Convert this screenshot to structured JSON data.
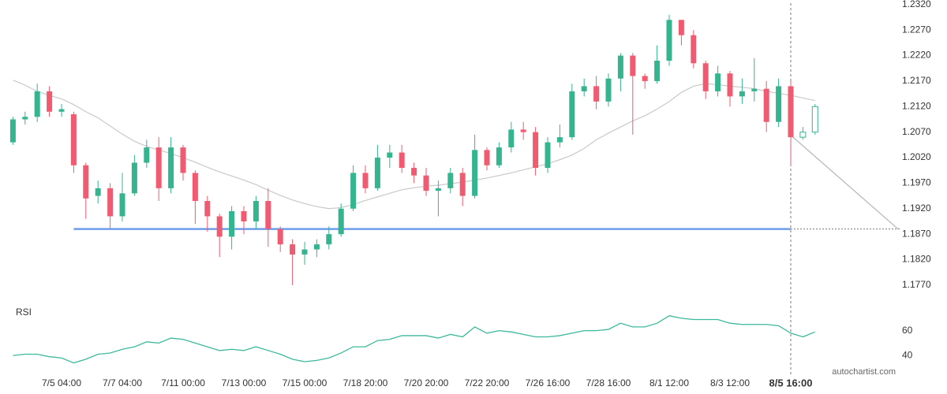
{
  "chart_data": [
    {
      "type": "candlestick",
      "categories": [
        null,
        null,
        null,
        null,
        "7/5 04:00",
        null,
        null,
        null,
        null,
        "7/7 04:00",
        null,
        null,
        null,
        null,
        "7/11 00:00",
        null,
        null,
        null,
        null,
        "7/13 00:00",
        null,
        null,
        null,
        null,
        "7/15 00:00",
        null,
        null,
        null,
        null,
        "7/18 20:00",
        null,
        null,
        null,
        null,
        "7/20 20:00",
        null,
        null,
        null,
        null,
        "7/22 20:00",
        null,
        null,
        null,
        null,
        "7/26 16:00",
        null,
        null,
        null,
        null,
        "7/28 16:00",
        null,
        null,
        null,
        null,
        "8/1 12:00",
        null,
        null,
        null,
        null,
        "8/3 12:00",
        null,
        null,
        null,
        null,
        "8/5 16:00",
        null,
        null
      ],
      "open": [
        1.205,
        1.2095,
        1.21,
        1.215,
        1.211,
        1.2105,
        1.2005,
        1.1945,
        1.196,
        1.1905,
        1.195,
        1.201,
        1.204,
        1.196,
        1.204,
        1.199,
        1.1935,
        1.1905,
        1.1865,
        1.1915,
        1.1895,
        1.1935,
        1.188,
        1.185,
        1.183,
        1.184,
        1.185,
        1.187,
        1.192,
        1.199,
        1.196,
        1.202,
        1.203,
        1.2,
        1.1985,
        1.1955,
        1.196,
        1.199,
        1.1945,
        1.2035,
        1.2005,
        1.204,
        1.2075,
        1.207,
        1.2,
        1.205,
        1.206,
        1.215,
        1.216,
        1.213,
        1.2175,
        1.222,
        1.218,
        1.217,
        1.221,
        1.229,
        1.226,
        1.2205,
        1.215,
        1.2185,
        1.214,
        1.215,
        1.2155,
        1.209,
        1.216,
        1.206,
        1.207
      ],
      "high": [
        1.21,
        1.211,
        1.2165,
        1.216,
        1.2125,
        1.211,
        1.201,
        1.1975,
        1.197,
        1.199,
        1.2025,
        1.2055,
        1.206,
        1.206,
        1.2045,
        1.1995,
        1.1945,
        1.191,
        1.1925,
        1.1925,
        1.1945,
        1.196,
        1.1885,
        1.186,
        1.1855,
        1.186,
        1.1885,
        1.193,
        1.2005,
        1.2005,
        1.2045,
        1.2045,
        1.2045,
        1.201,
        1.2,
        1.1975,
        1.2,
        1.2,
        1.2065,
        1.204,
        1.205,
        1.209,
        1.209,
        1.208,
        1.206,
        1.2085,
        1.2165,
        1.2175,
        1.218,
        1.2185,
        1.2225,
        1.2225,
        1.2185,
        1.224,
        1.23,
        1.229,
        1.227,
        1.221,
        1.22,
        1.219,
        1.2175,
        1.2215,
        1.217,
        1.2175,
        1.217,
        1.208,
        1.2125
      ],
      "low": [
        1.2045,
        1.2085,
        1.209,
        1.21,
        1.21,
        1.199,
        1.19,
        1.193,
        1.188,
        1.1895,
        1.1945,
        1.2,
        1.1935,
        1.195,
        1.1975,
        1.189,
        1.1875,
        1.1825,
        1.184,
        1.187,
        1.188,
        1.1845,
        1.1835,
        1.177,
        1.181,
        1.1825,
        1.184,
        1.1865,
        1.1915,
        1.195,
        1.1955,
        1.2,
        1.199,
        1.197,
        1.1945,
        1.1905,
        1.195,
        1.1925,
        1.194,
        1.1995,
        1.2,
        1.203,
        1.2055,
        1.1985,
        1.199,
        1.204,
        1.2055,
        1.214,
        1.2115,
        1.212,
        1.215,
        1.2065,
        1.2155,
        1.2165,
        1.22,
        1.224,
        1.2195,
        1.2135,
        1.214,
        1.212,
        1.2125,
        1.213,
        1.207,
        1.208,
        1.2005,
        1.2055,
        1.2065
      ],
      "close": [
        1.2095,
        1.21,
        1.215,
        1.211,
        1.2115,
        1.2005,
        1.194,
        1.196,
        1.1905,
        1.195,
        1.201,
        1.204,
        1.196,
        1.204,
        1.199,
        1.1935,
        1.1905,
        1.1865,
        1.1915,
        1.1895,
        1.1935,
        1.188,
        1.185,
        1.183,
        1.184,
        1.185,
        1.187,
        1.192,
        1.199,
        1.196,
        1.202,
        1.203,
        1.2,
        1.1985,
        1.1955,
        1.196,
        1.199,
        1.1945,
        1.2035,
        1.2005,
        1.204,
        1.2075,
        1.207,
        1.2,
        1.205,
        1.206,
        1.215,
        1.216,
        1.213,
        1.2175,
        1.222,
        1.218,
        1.217,
        1.221,
        1.229,
        1.226,
        1.2205,
        1.215,
        1.2185,
        1.214,
        1.215,
        1.2155,
        1.209,
        1.216,
        1.206,
        1.207,
        1.212
      ],
      "up_color": "#34b48f",
      "down_color": "#ef5b70",
      "moving_average": {
        "color": "#c9c9c9",
        "values": [
          1.2172,
          1.2162,
          1.215,
          1.2142,
          1.2135,
          1.2124,
          1.211,
          1.2098,
          1.2082,
          1.2066,
          1.2052,
          1.2042,
          1.2035,
          1.2028,
          1.202,
          1.2011,
          1.2001,
          1.1992,
          1.1984,
          1.1976,
          1.1967,
          1.1956,
          1.1946,
          1.1937,
          1.193,
          1.1924,
          1.192,
          1.1922,
          1.1928,
          1.1936,
          1.1943,
          1.195,
          1.1957,
          1.1961,
          1.1964,
          1.1966,
          1.1969,
          1.1972,
          1.1976,
          1.198,
          1.1985,
          1.199,
          1.1996,
          1.2002,
          1.2008,
          1.2016,
          1.2025,
          1.2038,
          1.2055,
          1.2068,
          1.208,
          1.2092,
          1.2102,
          1.2115,
          1.213,
          1.2148,
          1.216,
          1.2165,
          1.2163,
          1.216,
          1.2158,
          1.2155,
          1.215,
          1.2146,
          1.2142,
          1.2137,
          1.2132
        ]
      },
      "support": {
        "value": 1.188,
        "color": "#6d9eeb"
      },
      "forecast": {
        "from": 1.2064,
        "to": 1.188,
        "color": "#b5b5b5"
      },
      "ylim": [
        1.1742,
        1.2329
      ],
      "yticks": [
        {
          "value": 1.232,
          "label": "1.2320"
        },
        {
          "value": 1.227,
          "label": "1.2270"
        },
        {
          "value": 1.222,
          "label": "1.2220"
        },
        {
          "value": 1.217,
          "label": "1.2170"
        },
        {
          "value": 1.212,
          "label": "1.2120"
        },
        {
          "value": 1.207,
          "label": "1.2070"
        },
        {
          "value": 1.202,
          "label": "1.2020"
        },
        {
          "value": 1.197,
          "label": "1.1970"
        },
        {
          "value": 1.192,
          "label": "1.1920"
        },
        {
          "value": 1.187,
          "label": "1.1870"
        },
        {
          "value": 1.182,
          "label": "1.1820"
        },
        {
          "value": 1.177,
          "label": "1.1770"
        }
      ],
      "source": "autochartist.com"
    },
    {
      "type": "line",
      "title": "RSI",
      "color": "#3cb99a",
      "values": [
        40,
        41,
        41,
        39,
        38,
        34,
        37,
        41,
        42,
        45,
        47,
        51,
        50,
        54,
        53,
        50,
        47,
        44,
        45,
        44,
        47,
        44,
        41,
        37,
        35,
        36,
        38,
        42,
        47,
        47,
        52,
        53,
        56,
        56,
        56,
        54,
        57,
        55,
        63,
        58,
        60,
        59,
        57,
        55,
        55,
        56,
        58,
        60,
        60,
        61,
        66,
        63,
        63,
        66,
        72,
        70,
        69,
        69,
        69,
        66,
        65,
        65,
        65,
        64,
        58,
        55,
        59
      ],
      "ylim": [
        28,
        82
      ],
      "yticks": [
        40,
        60
      ]
    }
  ]
}
